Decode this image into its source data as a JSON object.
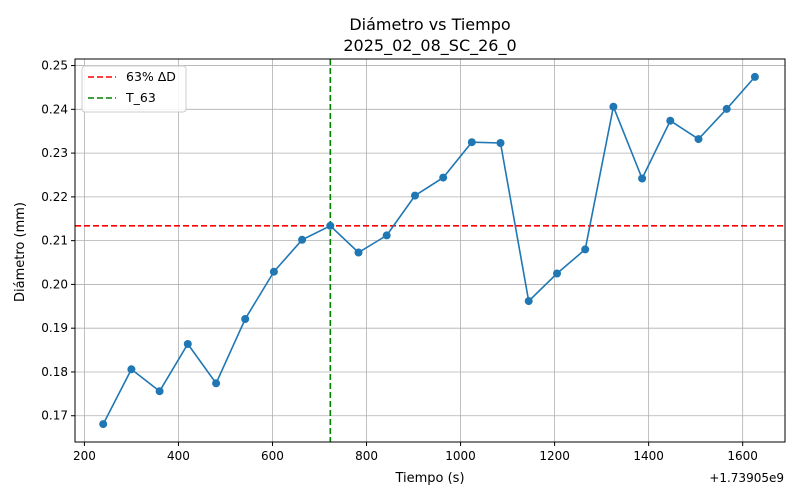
{
  "chart_data": {
    "type": "line",
    "title": "Diámetro vs Tiempo",
    "subtitle": "2025_02_08_SC_26_0",
    "xlabel": "Tiempo (s)",
    "ylabel": "Diámetro (mm)",
    "x_offset_label": "+1.73905e9",
    "xlim": [
      180,
      1690
    ],
    "ylim": [
      0.164,
      0.2515
    ],
    "xticks": [
      200,
      400,
      600,
      800,
      1000,
      1200,
      1400,
      1600
    ],
    "xtick_labels": [
      "200",
      "400",
      "600",
      "800",
      "1000",
      "1200",
      "1400",
      "1600"
    ],
    "yticks": [
      0.17,
      0.18,
      0.19,
      0.2,
      0.21,
      0.22,
      0.23,
      0.24,
      0.25
    ],
    "ytick_labels": [
      "0.17",
      "0.18",
      "0.19",
      "0.20",
      "0.21",
      "0.22",
      "0.23",
      "0.24",
      "0.25"
    ],
    "grid": true,
    "legend_position": "top-left",
    "series": [
      {
        "color": "#1f77b4",
        "x": [
          240,
          300,
          360,
          420,
          480,
          542,
          603,
          663,
          723,
          783,
          843,
          903,
          963,
          1024,
          1085,
          1145,
          1205,
          1265,
          1325,
          1386,
          1446,
          1506,
          1566,
          1626
        ],
        "y": [
          0.1681,
          0.1806,
          0.1756,
          0.1864,
          0.1774,
          0.1921,
          0.2029,
          0.2102,
          0.2134,
          0.2073,
          0.2112,
          0.2203,
          0.2244,
          0.2325,
          0.2323,
          0.1962,
          0.2025,
          0.208,
          0.2406,
          0.2242,
          0.2374,
          0.2332,
          0.2401,
          0.2474
        ]
      }
    ],
    "reference_lines": [
      {
        "name": "63% ΔD",
        "orientation": "horizontal",
        "value": 0.2134,
        "color": "#ff0000",
        "style": "dashed"
      },
      {
        "name": "T_63",
        "orientation": "vertical",
        "value": 723,
        "color": "#008000",
        "style": "dashed"
      }
    ]
  }
}
